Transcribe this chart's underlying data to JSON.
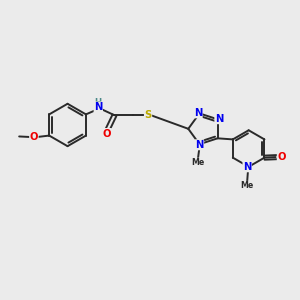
{
  "bg_color": "#EBEBEB",
  "bond_color": "#2A2A2A",
  "atom_colors": {
    "N": "#0000EE",
    "O": "#EE0000",
    "S": "#BBAA00",
    "C": "#2A2A2A",
    "H": "#4A8888"
  },
  "lw": 1.4,
  "fs": 7.2
}
